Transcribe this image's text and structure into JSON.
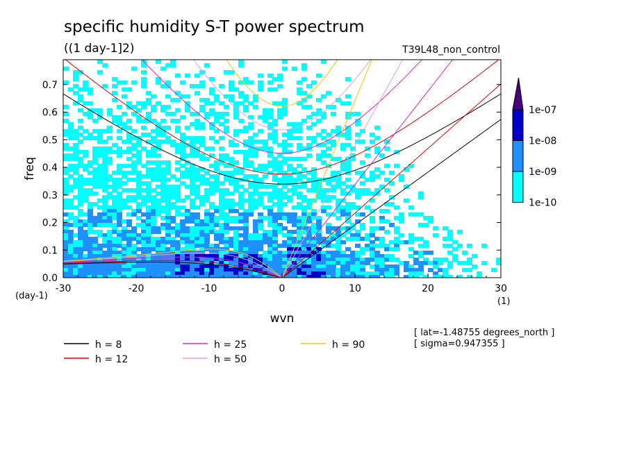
{
  "chart_data": {
    "type": "contour",
    "title": "specific humidity S-T power spectrum",
    "subtitle": "((1 day-1]2)",
    "run_label": "T39L48_non_control",
    "xlabel": "wvn",
    "ylabel": "freq",
    "x_unit": "(1)",
    "y_unit": "(day-1)",
    "xlim": [
      -30,
      30
    ],
    "ylim": [
      0,
      0.79
    ],
    "x_ticks": [
      -30,
      -20,
      -10,
      0,
      10,
      20,
      30
    ],
    "x_tick_labels": [
      "-30",
      "-20",
      "-10",
      "0",
      "10",
      "20",
      "30"
    ],
    "y_ticks": [
      0,
      0.1,
      0.2,
      0.3,
      0.4,
      0.5,
      0.6,
      0.7
    ],
    "y_tick_labels": [
      "0.0",
      "0.1",
      "0.2",
      "0.3",
      "0.4",
      "0.5",
      "0.6",
      "0.7"
    ],
    "colorbar": {
      "levels": [
        "1e-10",
        "1e-09",
        "1e-08",
        "1e-07"
      ],
      "colors": [
        "#00ffff",
        "#1e90ff",
        "#0000cd",
        "#4b0082"
      ]
    },
    "dispersion_curves": [
      {
        "name": "h =  8",
        "color": "#000000",
        "h": 8
      },
      {
        "name": "h = 12",
        "color": "#e00000",
        "h": 12
      },
      {
        "name": "h = 25",
        "color": "#e020c0",
        "h": 25
      },
      {
        "name": "h = 50",
        "color": "#e0a0e0",
        "h": 50
      },
      {
        "name": "h = 90",
        "color": "#f0c800",
        "h": 90
      }
    ],
    "annotations": [
      "[ lat=-1.48755 degrees_north ]",
      "[ sigma=0.947355 ]"
    ]
  }
}
